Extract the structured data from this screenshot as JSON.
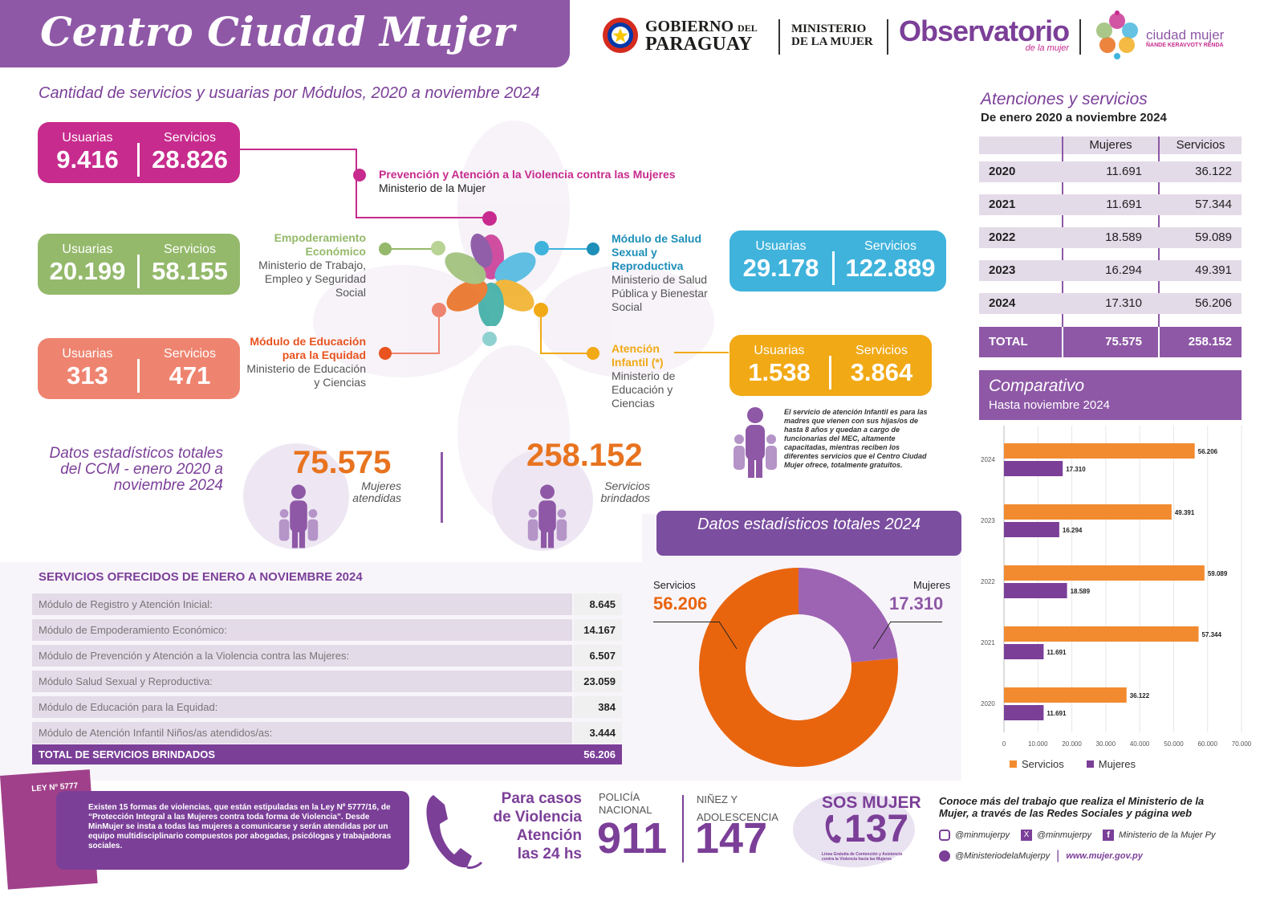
{
  "header": {
    "title": "Centro Ciudad Mujer",
    "logo_gobierno_1": "GOBIERNO",
    "logo_gobierno_del": "DEL",
    "logo_gobierno_2": "PARAGUAY",
    "logo_ministerio_1": "MINISTERIO",
    "logo_ministerio_2": "DE LA MUJER",
    "logo_observatorio": "Observatorio",
    "logo_observatorio_sub": "de la mujer",
    "logo_ciudad": "ciudad mujer",
    "logo_ciudad_sub": "ÑANDE KERAVVOTY RENDA"
  },
  "modules_section": {
    "subtitle": "Cantidad de servicios y usuarias por Módulos, 2020 a noviembre 2024",
    "label_usuarias": "Usuarias",
    "label_servicios": "Servicios",
    "modules": [
      {
        "title": "Prevención y Atención a la Violencia contra las Mujeres",
        "ministry": "Ministerio de la Mujer",
        "usuarias": "9.416",
        "servicios": "28.826",
        "color": "#c72b8d"
      },
      {
        "title": "Empoderamiento Económico",
        "ministry": "Ministerio de Trabajo, Empleo y Seguridad Social",
        "usuarias": "20.199",
        "servicios": "58.155",
        "color": "#94b96b"
      },
      {
        "title": "Módulo de Educación para la Equidad",
        "ministry": "Ministerio de Educación y Ciencias",
        "usuarias": "313",
        "servicios": "471",
        "color": "#ee8470"
      },
      {
        "title": "Módulo de Salud Sexual y Reproductiva",
        "ministry": "Ministerio de Salud Pública y Bienestar Social",
        "usuarias": "29.178",
        "servicios": "122.889",
        "color": "#3fb3dc"
      },
      {
        "title": "Atención Infantil (*)",
        "ministry": "Ministerio de Educación y Ciencias",
        "usuarias": "1.538",
        "servicios": "3.864",
        "color": "#f1a915"
      }
    ],
    "note": "El servicio de atención Infantil es para las madres que vienen con sus hijas/os de hasta 8 años y quedan a cargo de funcionarias del MEC, altamente capacitadas, mientras reciben los diferentes servicios que el Centro Ciudad Mujer ofrece, totalmente gratuitos."
  },
  "totals_section": {
    "title": "Datos estadísticos totales del CCM - enero 2020 a noviembre 2024",
    "mujeres_value": "75.575",
    "mujeres_label": "Mujeres atendidas",
    "servicios_value": "258.152",
    "servicios_label": "Servicios brindados"
  },
  "services_2024": {
    "title": "SERVICIOS OFRECIDOS DE ENERO A NOVIEMBRE 2024",
    "rows": [
      {
        "name": "Módulo de Registro y Atención Inicial:",
        "value": "8.645"
      },
      {
        "name": "Módulo de Empoderamiento Económico:",
        "value": "14.167"
      },
      {
        "name": "Módulo de Prevención y Atención a la Violencia contra las Mujeres:",
        "value": "6.507"
      },
      {
        "name": "Módulo Salud Sexual y Reproductiva:",
        "value": "23.059"
      },
      {
        "name": "Módulo de Educación para la Equidad:",
        "value": "384"
      },
      {
        "name": "Módulo de Atención Infantil Niños/as atendidos/as:",
        "value": "3.444"
      }
    ],
    "total_label": "TOTAL DE SERVICIOS BRINDADOS",
    "total_value": "56.206"
  },
  "attention_table": {
    "title": "Atenciones y servicios",
    "subtitle": "De enero 2020 a noviembre 2024",
    "col_mujeres": "Mujeres",
    "col_servicios": "Servicios",
    "rows": [
      {
        "year": "2020",
        "mujeres": "11.691",
        "servicios": "36.122"
      },
      {
        "year": "2021",
        "mujeres": "11.691",
        "servicios": "57.344"
      },
      {
        "year": "2022",
        "mujeres": "18.589",
        "servicios": "59.089"
      },
      {
        "year": "2023",
        "mujeres": "16.294",
        "servicios": "49.391"
      },
      {
        "year": "2024",
        "mujeres": "17.310",
        "servicios": "56.206"
      }
    ],
    "total_label": "TOTAL",
    "total_mujeres": "75.575",
    "total_servicios": "258.152"
  },
  "footer": {
    "law_badge": "LEY Nº 5777",
    "law_text": "Existen 15 formas de violencias, que están estipuladas en la Ley Nº 5777/16, de “Protección Integral a las Mujeres contra toda forma de Violencia”. Desde MinMujer se insta a todas las mujeres a comunicarse y serán atendidas por un equipo multidisciplinario compuestos por abogadas, psicólogas y trabajadoras sociales.",
    "emergency_1": "Para casos",
    "emergency_2": "de Violencia",
    "emergency_3": "Atención",
    "emergency_4": "las 24 hs",
    "police_label_1": "POLICÍA",
    "police_label_2": "NACIONAL",
    "police_number": "911",
    "child_label_1": "NIÑEZ Y",
    "child_label_2": "ADOLESCENCIA",
    "child_number": "147",
    "sos_label": "SOS MUJER",
    "sos_number": "137",
    "sos_sub": "Línea Gratuita de Contención y Asistencia contra la Violencia hacia las Mujeres",
    "social_title": "Conoce más del trabajo que realiza el Ministerio de la Mujer, a través de las Redes Sociales y página web",
    "instagram": "@minmujerpy",
    "x_handle": "@minmujerpy",
    "facebook": "Ministerio de la Mujer Py",
    "tiktok": "@MinisteriodelaMujerpy",
    "web": "www.mujer.gov.py"
  },
  "chart_data": [
    {
      "type": "pie",
      "title": "Datos estadísticos totales 2024",
      "labels": [
        "Servicios",
        "Mujeres"
      ],
      "values": [
        56206,
        17310
      ],
      "value_labels": [
        "56.206",
        "17.310"
      ],
      "colors": [
        "#e8650e",
        "#9e64b4"
      ]
    },
    {
      "type": "bar",
      "orientation": "horizontal",
      "title": "Comparativo",
      "subtitle": "Hasta noviembre 2024",
      "categories": [
        "2024",
        "2023",
        "2022",
        "2021",
        "2020"
      ],
      "series": [
        {
          "name": "Servicios",
          "values": [
            56206,
            49391,
            59089,
            57344,
            36122
          ],
          "labels": [
            "56.206",
            "49.391",
            "59.089",
            "57.344",
            "36.122"
          ],
          "color": "#f28b30"
        },
        {
          "name": "Mujeres",
          "values": [
            17310,
            16294,
            18589,
            11691,
            11691
          ],
          "labels": [
            "17.310",
            "16.294",
            "18.589",
            "11.691",
            "11.691"
          ],
          "color": "#7b3f98"
        }
      ],
      "xlim": [
        0,
        70000
      ],
      "xticks": [
        0,
        10000,
        20000,
        30000,
        40000,
        50000,
        60000,
        70000
      ],
      "xtick_labels": [
        "0",
        "10.000",
        "20.000",
        "30.000",
        "40.000",
        "50.000",
        "60.000",
        "70.000"
      ],
      "grid": true,
      "legend": "bottom-left"
    }
  ]
}
